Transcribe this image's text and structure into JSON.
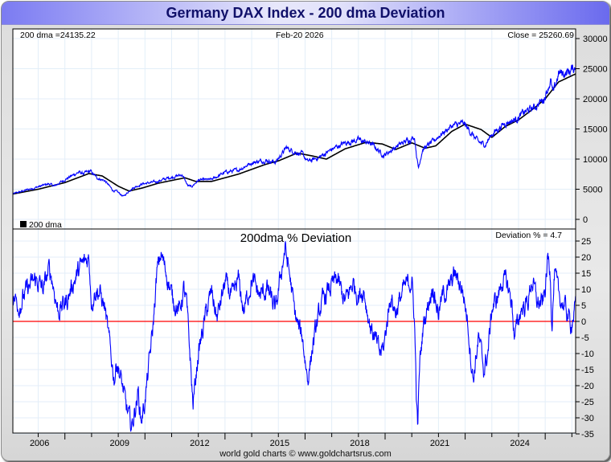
{
  "header": {
    "title": "Germany DAX Index - 200 dma Deviation"
  },
  "footer": {
    "credit": "world gold charts © www.goldchartsrus.com"
  },
  "chart_data": [
    {
      "type": "line",
      "name": "price-panel",
      "title": "",
      "labels": {
        "dma_readout": "200 dma =24135.22",
        "date_readout": "Feb-20  2026",
        "close_readout": "Close = 25260.69",
        "legend": "200 dma"
      },
      "xlim": [
        2005.05,
        2026.14
      ],
      "ylim": [
        0,
        30000
      ],
      "yticks": [
        0,
        5000,
        10000,
        15000,
        20000,
        25000,
        30000
      ],
      "ytick_labels": [
        "0",
        "5000",
        "10000",
        "15000",
        "20000",
        "25000",
        "30000"
      ],
      "grid": true,
      "series": [
        {
          "name": "DAX Close",
          "color": "#0000ff",
          "x": [
            2005.05,
            2005.5,
            2006.0,
            2006.4,
            2006.6,
            2007.0,
            2007.5,
            2007.7,
            2007.95,
            2008.2,
            2008.5,
            2008.8,
            2008.95,
            2009.2,
            2009.5,
            2009.9,
            2010.4,
            2010.9,
            2011.4,
            2011.6,
            2011.75,
            2012.0,
            2012.5,
            2013.0,
            2013.5,
            2014.0,
            2014.5,
            2014.9,
            2015.3,
            2015.6,
            2015.9,
            2016.1,
            2016.5,
            2017.0,
            2017.5,
            2018.0,
            2018.5,
            2018.95,
            2019.5,
            2020.1,
            2020.2,
            2020.25,
            2020.4,
            2020.8,
            2021.0,
            2021.5,
            2021.95,
            2022.2,
            2022.5,
            2022.75,
            2023.0,
            2023.5,
            2023.9,
            2024.2,
            2024.6,
            2024.95,
            2025.2,
            2025.3,
            2025.5,
            2025.8,
            2026.14
          ],
          "values": [
            4200,
            4800,
            5400,
            5900,
            5500,
            6600,
            7800,
            7600,
            8000,
            6900,
            6400,
            4800,
            4600,
            3800,
            5100,
            5900,
            6200,
            6900,
            7400,
            5600,
            5400,
            6500,
            6600,
            7800,
            8200,
            9400,
            9800,
            9500,
            11900,
            11200,
            10800,
            9600,
            10200,
            11600,
            12700,
            13200,
            12500,
            10600,
            12300,
            13700,
            10000,
            8500,
            11600,
            12900,
            13800,
            15500,
            15900,
            14500,
            12800,
            12400,
            14100,
            16000,
            16600,
            17700,
            18600,
            20000,
            23000,
            20700,
            24200,
            24300,
            25260.69
          ]
        },
        {
          "name": "200 dma",
          "color": "#000000",
          "x": [
            2005.05,
            2006.0,
            2007.0,
            2007.9,
            2008.4,
            2009.0,
            2009.4,
            2009.9,
            2010.5,
            2011.5,
            2011.9,
            2012.5,
            2013.5,
            2014.5,
            2015.0,
            2015.7,
            2016.3,
            2016.8,
            2017.5,
            2018.3,
            2018.9,
            2019.4,
            2020.0,
            2020.5,
            2020.9,
            2021.5,
            2022.0,
            2022.6,
            2023.0,
            2023.5,
            2024.0,
            2024.6,
            2025.0,
            2025.5,
            2026.14
          ],
          "values": [
            4200,
            5000,
            6100,
            7600,
            7200,
            5500,
            4700,
            5200,
            6000,
            6900,
            6300,
            6300,
            7500,
            9100,
            9700,
            11000,
            10500,
            10000,
            11700,
            12800,
            12500,
            11600,
            12700,
            11800,
            12200,
            14600,
            15800,
            14900,
            13600,
            15400,
            16500,
            18500,
            20000,
            22800,
            24135.22
          ]
        }
      ]
    },
    {
      "type": "line",
      "name": "deviation-panel",
      "title": "200dma  %  Deviation",
      "labels": {
        "deviation_readout": "Deviation % = 4.7"
      },
      "xlim": [
        2005.05,
        2026.14
      ],
      "ylim": [
        -35,
        27
      ],
      "yticks": [
        -35,
        -30,
        -25,
        -20,
        -15,
        -10,
        -5,
        0,
        5,
        10,
        15,
        20,
        25
      ],
      "ytick_labels": [
        "-35",
        "-30",
        "-25",
        "-20",
        "-15",
        "-10",
        "-5",
        "0",
        "5",
        "10",
        "15",
        "20",
        "25"
      ],
      "xticks": [
        2006,
        2009,
        2012,
        2015,
        2018,
        2021,
        2024
      ],
      "xtick_labels": [
        "2006",
        "2009",
        "2012",
        "2015",
        "2018",
        "2021",
        "2024"
      ],
      "grid": true,
      "reference_line": {
        "value": 0,
        "color": "#ff0000"
      },
      "series": [
        {
          "name": "Deviation %",
          "color": "#0000ff",
          "x": [
            2005.05,
            2005.3,
            2005.6,
            2005.9,
            2006.2,
            2006.4,
            2006.5,
            2006.75,
            2007.1,
            2007.3,
            2007.6,
            2007.9,
            2008.0,
            2008.15,
            2008.3,
            2008.5,
            2008.65,
            2008.85,
            2008.95,
            2009.15,
            2009.3,
            2009.5,
            2009.75,
            2009.85,
            2010.0,
            2010.3,
            2010.45,
            2010.6,
            2010.9,
            2011.0,
            2011.3,
            2011.45,
            2011.55,
            2011.7,
            2011.8,
            2012.0,
            2012.3,
            2012.5,
            2012.7,
            2013.0,
            2013.3,
            2013.5,
            2013.7,
            2014.0,
            2014.3,
            2014.6,
            2014.9,
            2015.1,
            2015.25,
            2015.45,
            2015.6,
            2015.75,
            2015.9,
            2016.1,
            2016.3,
            2016.6,
            2016.9,
            2017.2,
            2017.5,
            2017.8,
            2018.0,
            2018.2,
            2018.4,
            2018.6,
            2018.8,
            2018.95,
            2019.2,
            2019.4,
            2019.7,
            2020.0,
            2020.1,
            2020.18,
            2020.22,
            2020.3,
            2020.45,
            2020.6,
            2020.8,
            2020.85,
            2021.0,
            2021.2,
            2021.4,
            2021.6,
            2021.9,
            2022.1,
            2022.2,
            2022.3,
            2022.5,
            2022.7,
            2022.85,
            2023.0,
            2023.2,
            2023.4,
            2023.55,
            2023.75,
            2023.85,
            2024.1,
            2024.35,
            2024.5,
            2024.7,
            2024.9,
            2025.0,
            2025.1,
            2025.2,
            2025.25,
            2025.35,
            2025.5,
            2025.7,
            2025.85,
            2025.95,
            2026.14
          ],
          "values": [
            8,
            5,
            10,
            13,
            10,
            16,
            14,
            3,
            7,
            12,
            17,
            20,
            6,
            10,
            9,
            4,
            -6,
            -18,
            -12,
            -20,
            -27,
            -33,
            -22,
            -31,
            -25,
            -2,
            15,
            21,
            12,
            8,
            3,
            10,
            6,
            -12,
            -26,
            -10,
            3,
            9,
            1,
            12,
            7,
            13,
            3,
            13,
            8,
            10,
            3,
            15,
            23,
            13,
            3,
            -2,
            -5,
            -18,
            -7,
            5,
            10,
            13,
            6,
            12,
            8,
            10,
            0,
            -5,
            -10,
            -8,
            8,
            3,
            10,
            13,
            0,
            -25,
            -33,
            -13,
            0,
            5,
            12,
            8,
            3,
            9,
            10,
            15,
            10,
            0,
            -10,
            -18,
            -5,
            -15,
            -10,
            4,
            7,
            13,
            12,
            6,
            -5,
            4,
            6,
            13,
            6,
            5,
            10,
            20,
            15,
            -1,
            15,
            8,
            5,
            2,
            -1,
            4.7
          ]
        }
      ]
    }
  ]
}
